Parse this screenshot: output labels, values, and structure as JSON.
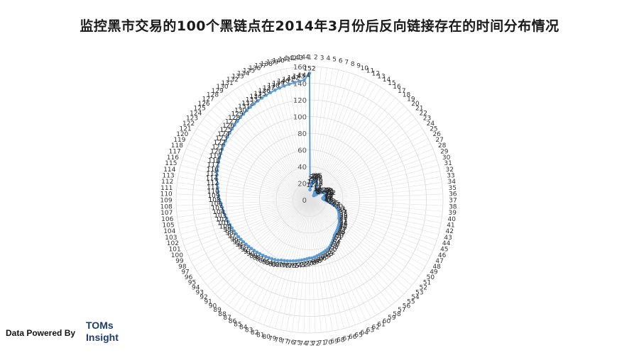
{
  "page": {
    "title": "监控黑市交易的100个黑链点在2014年3月份后反向链接存在的时间分布情况"
  },
  "footer": {
    "powered_by": "Data Powered By",
    "brand_line1": "TOMs",
    "brand_line2": "Insight"
  },
  "chart_data": {
    "type": "radar",
    "title": "监控黑市交易的100个黑链点在2014年3月份后反向链接存在的时间分布情况",
    "category_count": 144,
    "rmax": 160,
    "radial_ticks": [
      0,
      20,
      40,
      60,
      80,
      100,
      120,
      140,
      160
    ],
    "grid": true,
    "series_color": "#5b9bd5",
    "series": [
      {
        "values": [
          152,
          12,
          16,
          20,
          22,
          23,
          24,
          23,
          25,
          22,
          20,
          18,
          16,
          12,
          11,
          10,
          9,
          8,
          7,
          8,
          9,
          11,
          14,
          16,
          18,
          19,
          20,
          21,
          20,
          22,
          19,
          18,
          17,
          16,
          16,
          17,
          18,
          20,
          22,
          25,
          27,
          30,
          33,
          35,
          37,
          38,
          39,
          40,
          41,
          42,
          44,
          45,
          46,
          47,
          48,
          49,
          50,
          51,
          52,
          54,
          56,
          58,
          60,
          62,
          63,
          64,
          65,
          66,
          67,
          68,
          69,
          70,
          70,
          71,
          72,
          73,
          74,
          75,
          76,
          77,
          78,
          79,
          80,
          82,
          83,
          84,
          85,
          86,
          87,
          88,
          89,
          90,
          91,
          92,
          93,
          94,
          95,
          96,
          97,
          98,
          99,
          100,
          101,
          102,
          103,
          104,
          105,
          106,
          108,
          109,
          110,
          111,
          112,
          114,
          115,
          116,
          117,
          118,
          119,
          120,
          121,
          122,
          123,
          124,
          125,
          126,
          127,
          128,
          129,
          130,
          131,
          132,
          133,
          134,
          135,
          136,
          137,
          138,
          139,
          140,
          141,
          142,
          143,
          144
        ]
      }
    ]
  }
}
